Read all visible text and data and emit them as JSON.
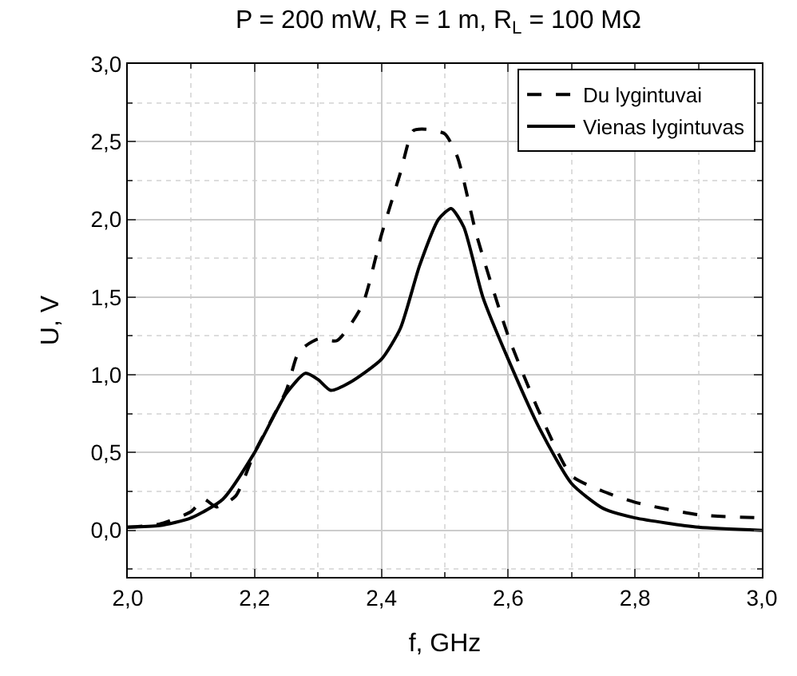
{
  "chart_data": {
    "type": "line",
    "title": "P = 200 mW, R = 1 m, R$_{L}$ = 100 MΩ",
    "xlabel": "f, GHz",
    "ylabel": "U, V",
    "xlim": [
      2.0,
      3.0
    ],
    "ylim": [
      -0.3,
      3.0
    ],
    "xticks": [
      {
        "value": 2.0,
        "label": "2,0"
      },
      {
        "value": 2.2,
        "label": "2,2"
      },
      {
        "value": 2.4,
        "label": "2,4"
      },
      {
        "value": 2.6,
        "label": "2,6"
      },
      {
        "value": 2.8,
        "label": "2,8"
      },
      {
        "value": 3.0,
        "label": "3,0"
      }
    ],
    "yticks": [
      {
        "value": 0.0,
        "label": "0,0"
      },
      {
        "value": 0.5,
        "label": "0,5"
      },
      {
        "value": 1.0,
        "label": "1,0"
      },
      {
        "value": 1.5,
        "label": "1,5"
      },
      {
        "value": 2.0,
        "label": "2,0"
      },
      {
        "value": 2.5,
        "label": "2,5"
      },
      {
        "value": 3.0,
        "label": "3,0"
      }
    ],
    "grid": true,
    "legend": "top right",
    "marker": "none",
    "series": [
      {
        "name": "Du lygintuvai",
        "color": "#000000",
        "line_style": "dashed",
        "x": [
          2.0,
          2.05,
          2.1,
          2.12,
          2.14,
          2.17,
          2.2,
          2.25,
          2.27,
          2.3,
          2.33,
          2.37,
          2.4,
          2.43,
          2.45,
          2.47,
          2.5,
          2.52,
          2.55,
          2.6,
          2.65,
          2.7,
          2.75,
          2.8,
          2.9,
          3.0
        ],
        "values": [
          0.02,
          0.04,
          0.12,
          0.2,
          0.15,
          0.22,
          0.5,
          0.9,
          1.15,
          1.23,
          1.22,
          1.45,
          1.9,
          2.3,
          2.57,
          2.58,
          2.55,
          2.4,
          1.9,
          1.25,
          0.75,
          0.35,
          0.25,
          0.18,
          0.1,
          0.08
        ]
      },
      {
        "name": "Vienas lygintuvas",
        "color": "#000000",
        "line_style": "solid",
        "x": [
          2.0,
          2.05,
          2.1,
          2.15,
          2.2,
          2.25,
          2.28,
          2.3,
          2.32,
          2.35,
          2.4,
          2.43,
          2.46,
          2.49,
          2.51,
          2.53,
          2.56,
          2.6,
          2.65,
          2.7,
          2.75,
          2.8,
          2.9,
          3.0
        ],
        "values": [
          0.02,
          0.03,
          0.08,
          0.2,
          0.5,
          0.88,
          1.01,
          0.97,
          0.9,
          0.95,
          1.1,
          1.3,
          1.7,
          2.0,
          2.07,
          1.95,
          1.5,
          1.1,
          0.65,
          0.3,
          0.14,
          0.08,
          0.02,
          0.0
        ]
      }
    ]
  }
}
